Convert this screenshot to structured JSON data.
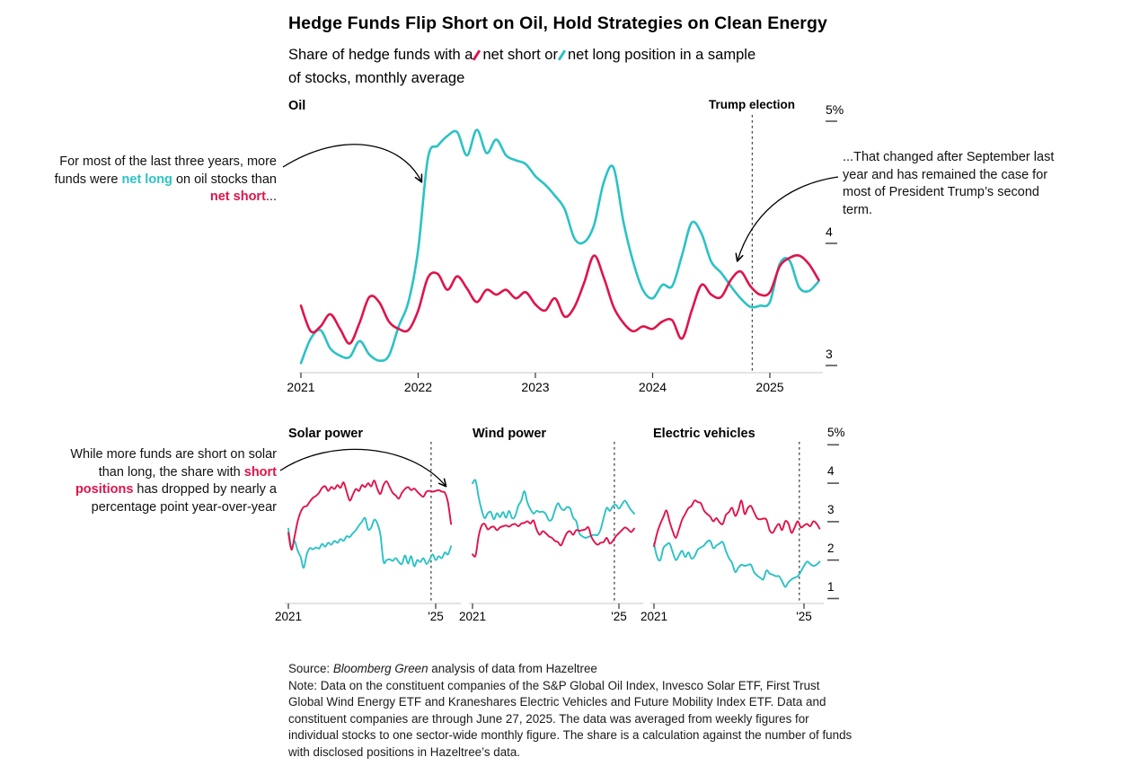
{
  "header": {
    "title": "Hedge Funds Flip Short on Oil, Hold Strategies on Clean Energy",
    "subtitle_p1": "Share of hedge funds with a",
    "subtitle_short": "net short",
    "subtitle_or": "or",
    "subtitle_long": "net long",
    "subtitle_p2": "position in a sample",
    "subtitle_line2": "of stocks, monthly average"
  },
  "colors": {
    "net_short": "#e01349",
    "net_long": "#2bc2c5",
    "axis": "#c9c9c9",
    "tick": "#333333",
    "event_line": "#444444"
  },
  "annotations": {
    "oil_left": {
      "p1": "For most of the last three years, more funds were ",
      "long": "net long",
      "p2": " on oil stocks than ",
      "short": "net short",
      "p3": "..."
    },
    "oil_right": "...That changed after September last year and has remained the case for most of President Trump’s second term.",
    "solar_left": {
      "p1": "While more funds are short on solar than long, the share with ",
      "short": "short positions",
      "p2": " has dropped by nearly a percentage point year-over-year"
    }
  },
  "footer": {
    "source_prefix": "Source: ",
    "source_italic": "Bloomberg Green",
    "source_suffix": " analysis of data from Hazeltree",
    "note": "Note: Data on the constituent companies of the S&P Global Oil Index, Invesco Solar ETF, First Trust Global Wind Energy ETF and Kraneshares Electric Vehicles and Future Mobility Index ETF. Data and constituent companies are through June 27, 2025. The data was averaged from weekly figures for individual stocks to one sector-wide monthly figure. The share is a calculation against the number of funds with disclosed positions in Hazeltree’s data."
  },
  "chart_data": [
    {
      "id": "oil",
      "type": "line",
      "panel_title": "Oil",
      "x_unit": "month",
      "x_start": "2021-01",
      "x_end": "2025-06",
      "x_ticks": [
        "2021",
        "2022",
        "2023",
        "2024",
        "2025"
      ],
      "y_ticks": [
        {
          "label": "5%",
          "value": 5
        },
        {
          "label": "4",
          "value": 4
        },
        {
          "label": "3",
          "value": 3
        }
      ],
      "ylim": [
        3,
        5
      ],
      "event_line": {
        "label": "Trump election",
        "date": "2024-11"
      },
      "series": [
        {
          "key": "net_long",
          "name": "net long",
          "values": [
            3.02,
            3.22,
            3.29,
            3.14,
            3.08,
            3.07,
            3.2,
            3.09,
            3.04,
            3.08,
            3.32,
            3.52,
            3.95,
            4.7,
            4.8,
            4.88,
            4.91,
            4.72,
            4.93,
            4.74,
            4.85,
            4.72,
            4.68,
            4.65,
            4.55,
            4.48,
            4.39,
            4.28,
            4.04,
            4.01,
            4.15,
            4.5,
            4.62,
            4.18,
            3.85,
            3.62,
            3.55,
            3.66,
            3.65,
            3.9,
            4.17,
            4.08,
            3.85,
            3.76,
            3.65,
            3.55,
            3.48,
            3.49,
            3.52,
            3.83,
            3.86,
            3.64,
            3.61,
            3.69
          ]
        },
        {
          "key": "net_short",
          "name": "net short",
          "values": [
            3.49,
            3.28,
            3.32,
            3.42,
            3.3,
            3.18,
            3.35,
            3.56,
            3.52,
            3.36,
            3.3,
            3.29,
            3.45,
            3.72,
            3.75,
            3.62,
            3.73,
            3.63,
            3.52,
            3.62,
            3.58,
            3.62,
            3.55,
            3.6,
            3.5,
            3.45,
            3.55,
            3.4,
            3.48,
            3.68,
            3.9,
            3.72,
            3.48,
            3.35,
            3.28,
            3.32,
            3.3,
            3.36,
            3.37,
            3.22,
            3.45,
            3.66,
            3.58,
            3.56,
            3.7,
            3.77,
            3.65,
            3.58,
            3.6,
            3.81,
            3.88,
            3.9,
            3.83,
            3.7
          ]
        }
      ]
    },
    {
      "id": "solar",
      "type": "line",
      "panel_title": "Solar power",
      "x_unit": "month",
      "x_start": "2021-01",
      "x_end": "2025-06",
      "x_ticks": [
        "2021",
        "'25"
      ],
      "event_line": {
        "date": "2024-11"
      },
      "ylim": [
        1,
        5
      ],
      "series": [
        {
          "key": "net_long",
          "name": "net long",
          "values": [
            2.82,
            2.31,
            2.5,
            2.25,
            2.08,
            1.8,
            2.15,
            2.31,
            2.28,
            2.33,
            2.3,
            2.42,
            2.35,
            2.45,
            2.4,
            2.5,
            2.45,
            2.55,
            2.5,
            2.62,
            2.6,
            2.7,
            2.78,
            2.9,
            3.0,
            3.09,
            2.8,
            2.85,
            3.05,
            2.95,
            2.66,
            1.96,
            2.0,
            2.02,
            1.98,
            2.05,
            1.95,
            1.9,
            2.12,
            1.91,
            2.1,
            1.84,
            2.0,
            1.95,
            2.05,
            1.9,
            2.0,
            2.15,
            2.0,
            2.1,
            2.05,
            2.2,
            2.15,
            2.36
          ]
        },
        {
          "key": "net_short",
          "name": "net short",
          "values": [
            2.71,
            2.27,
            2.6,
            3.0,
            3.25,
            3.38,
            3.41,
            3.52,
            3.62,
            3.67,
            3.75,
            3.88,
            3.92,
            3.8,
            3.9,
            3.85,
            3.95,
            3.88,
            4.02,
            3.78,
            3.55,
            3.7,
            3.85,
            3.8,
            3.95,
            3.9,
            4.0,
            3.92,
            4.07,
            3.85,
            3.72,
            3.95,
            4.05,
            3.9,
            3.75,
            3.68,
            3.6,
            3.75,
            3.85,
            3.9,
            3.82,
            3.86,
            3.78,
            3.7,
            3.65,
            3.78,
            3.8,
            3.78,
            3.8,
            3.82,
            3.78,
            3.75,
            3.5,
            2.94
          ]
        }
      ]
    },
    {
      "id": "wind",
      "type": "line",
      "panel_title": "Wind power",
      "x_unit": "month",
      "x_start": "2021-01",
      "x_end": "2025-06",
      "x_ticks": [
        "2021",
        "'25"
      ],
      "event_line": {
        "date": "2024-11"
      },
      "ylim": [
        1,
        5
      ],
      "series": [
        {
          "key": "net_long",
          "name": "net long",
          "values": [
            4.0,
            4.07,
            3.64,
            3.3,
            3.09,
            3.22,
            3.25,
            3.06,
            3.22,
            3.12,
            3.25,
            3.1,
            3.28,
            3.09,
            3.15,
            3.41,
            3.55,
            3.79,
            3.5,
            3.32,
            3.21,
            3.28,
            3.25,
            3.26,
            3.2,
            3.04,
            3.06,
            3.3,
            3.48,
            3.35,
            3.3,
            3.38,
            3.34,
            3.1,
            3.01,
            2.7,
            2.62,
            2.58,
            2.6,
            2.64,
            2.66,
            2.65,
            2.8,
            3.1,
            3.36,
            3.28,
            3.4,
            3.44,
            3.34,
            3.45,
            3.55,
            3.42,
            3.3,
            3.21
          ]
        },
        {
          "key": "net_short",
          "name": "net short",
          "values": [
            2.15,
            2.12,
            2.62,
            2.9,
            2.94,
            2.8,
            2.85,
            2.87,
            2.78,
            2.85,
            2.88,
            2.9,
            2.87,
            2.92,
            2.94,
            2.88,
            2.95,
            2.97,
            3.01,
            2.95,
            3.03,
            2.8,
            2.66,
            2.75,
            2.7,
            2.62,
            2.58,
            2.5,
            2.47,
            2.38,
            2.55,
            2.71,
            2.75,
            2.66,
            2.78,
            2.76,
            2.78,
            2.8,
            2.85,
            2.6,
            2.47,
            2.4,
            2.45,
            2.47,
            2.58,
            2.43,
            2.5,
            2.62,
            2.7,
            2.78,
            2.85,
            2.8,
            2.73,
            2.82
          ]
        }
      ]
    },
    {
      "id": "ev",
      "type": "line",
      "panel_title": "Electric vehicles",
      "x_unit": "month",
      "x_start": "2021-01",
      "x_end": "2025-06",
      "x_ticks": [
        "2021",
        "'25"
      ],
      "y_ticks": [
        {
          "label": "5%",
          "value": 5
        },
        {
          "label": "4",
          "value": 4
        },
        {
          "label": "3",
          "value": 3
        },
        {
          "label": "2",
          "value": 2
        },
        {
          "label": "1",
          "value": 1
        }
      ],
      "event_line": {
        "date": "2024-11"
      },
      "ylim": [
        1,
        5
      ],
      "series": [
        {
          "key": "net_long",
          "name": "net long",
          "values": [
            2.43,
            2.08,
            2.0,
            2.31,
            2.4,
            2.43,
            2.2,
            2.0,
            2.12,
            2.24,
            2.08,
            2.2,
            2.04,
            2.1,
            2.27,
            2.33,
            2.38,
            2.48,
            2.5,
            2.31,
            2.38,
            2.43,
            2.47,
            2.24,
            2.05,
            1.92,
            1.69,
            1.8,
            1.88,
            1.85,
            1.87,
            1.88,
            1.69,
            1.6,
            1.54,
            1.5,
            1.73,
            1.65,
            1.62,
            1.58,
            1.58,
            1.45,
            1.3,
            1.42,
            1.5,
            1.54,
            1.58,
            1.7,
            1.85,
            1.96,
            1.9,
            1.85,
            1.88,
            1.96
          ]
        },
        {
          "key": "net_short",
          "name": "net short",
          "values": [
            2.36,
            2.7,
            2.94,
            3.12,
            3.29,
            3.0,
            2.75,
            2.58,
            2.8,
            3.05,
            3.2,
            3.35,
            3.41,
            3.55,
            3.51,
            3.48,
            3.29,
            3.2,
            3.13,
            3.01,
            3.09,
            2.98,
            2.94,
            3.17,
            3.25,
            3.36,
            3.15,
            3.3,
            3.55,
            3.2,
            3.35,
            3.41,
            3.25,
            3.09,
            3.06,
            3.08,
            3.05,
            2.78,
            2.71,
            2.85,
            2.94,
            2.78,
            3.01,
            2.95,
            2.71,
            2.85,
            3.01,
            2.85,
            2.9,
            2.94,
            2.88,
            3.01,
            2.95,
            2.82
          ]
        }
      ]
    }
  ],
  "event_label": "Trump election"
}
